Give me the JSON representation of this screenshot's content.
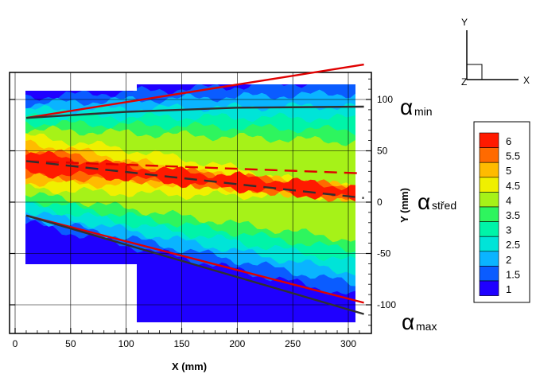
{
  "chart_data": {
    "type": "heatmap",
    "xlabel": "X (mm)",
    "ylabel": "Y (mm)",
    "xlim": [
      -5,
      320
    ],
    "ylim": [
      -128,
      126
    ],
    "x_ticks": [
      0,
      50,
      100,
      150,
      200,
      250,
      300
    ],
    "y_ticks": [
      -100,
      -50,
      0,
      50,
      100
    ],
    "grid": true,
    "legend_placement": "right",
    "legend": {
      "levels": [
        "1",
        "1.5",
        "2",
        "2.5",
        "3",
        "3.5",
        "4",
        "4.5",
        "5",
        "5.5",
        "6"
      ],
      "colors": [
        "#1f00ff",
        "#0a5cff",
        "#0ab4ff",
        "#00e4d8",
        "#00f4a8",
        "#2ef55e",
        "#a6f218",
        "#f0f000",
        "#ffbb00",
        "#ff6a00",
        "#ff1a00"
      ]
    },
    "lines": [
      {
        "name": "αmin",
        "points": [
          [
            10,
            82
          ],
          [
            314,
            134
          ]
        ],
        "color": "#e00000",
        "style": "solid"
      },
      {
        "name": "αmin",
        "points": [
          [
            10,
            82
          ],
          [
            100,
            88
          ],
          [
            200,
            92
          ],
          [
            314,
            93
          ]
        ],
        "color": "#303030",
        "style": "solid"
      },
      {
        "name": "αstřed",
        "points": [
          [
            10,
            40
          ],
          [
            314,
            28
          ]
        ],
        "color": "#e00000",
        "style": "dashed"
      },
      {
        "name": "αstřed",
        "points": [
          [
            10,
            40
          ],
          [
            314,
            4
          ]
        ],
        "color": "#303030",
        "style": "dashed"
      },
      {
        "name": "αmax",
        "points": [
          [
            10,
            -13
          ],
          [
            314,
            -98
          ]
        ],
        "color": "#e00000",
        "style": "solid"
      },
      {
        "name": "αmax",
        "points": [
          [
            10,
            -13
          ],
          [
            314,
            -109
          ]
        ],
        "color": "#303030",
        "style": "solid"
      }
    ],
    "annotations": {
      "alpha_min": {
        "main": "α",
        "sub": "min"
      },
      "alpha_mid": {
        "main": "α",
        "sub": "střed"
      },
      "alpha_max": {
        "main": "α",
        "sub": "max"
      }
    },
    "axis_triad": {
      "x": "X",
      "y": "Y",
      "z": "Z"
    }
  }
}
